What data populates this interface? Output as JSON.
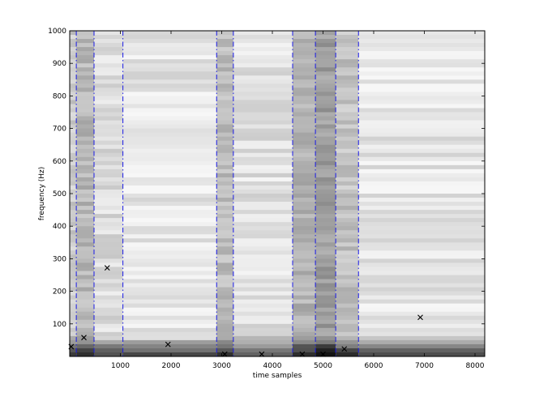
{
  "chart_data": {
    "type": "heatmap",
    "title": "",
    "xlabel": "time samples",
    "ylabel": "frequency (Hz)",
    "xlim": [
      0,
      8192
    ],
    "ylim": [
      0,
      1000
    ],
    "xticks": [
      1000,
      2000,
      3000,
      4000,
      5000,
      6000,
      7000,
      8000
    ],
    "yticks": [
      100,
      200,
      300,
      400,
      500,
      600,
      700,
      800,
      900,
      1000
    ],
    "colormap": "gray",
    "segment_boundaries": [
      130,
      480,
      1050,
      2900,
      3230,
      4400,
      4850,
      5250,
      5700
    ],
    "segment_line_color": "#1a1ae6",
    "markers": [
      {
        "x": 30,
        "y": 30
      },
      {
        "x": 280,
        "y": 58
      },
      {
        "x": 740,
        "y": 272
      },
      {
        "x": 1940,
        "y": 37
      },
      {
        "x": 3060,
        "y": 7
      },
      {
        "x": 3790,
        "y": 7
      },
      {
        "x": 4590,
        "y": 7
      },
      {
        "x": 5000,
        "y": 7
      },
      {
        "x": 5420,
        "y": 23
      },
      {
        "x": 6920,
        "y": 120
      }
    ]
  }
}
